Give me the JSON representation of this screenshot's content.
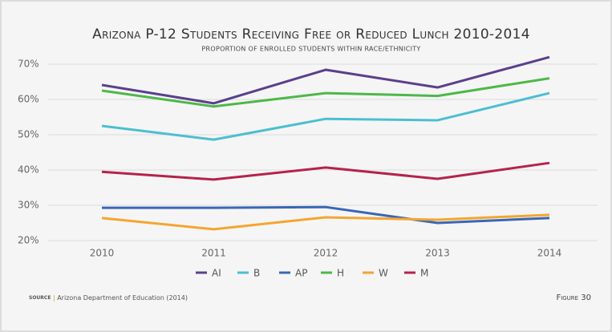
{
  "chart_data": {
    "type": "line",
    "title": "Arizona P-12 Students Receiving Free or Reduced Lunch 2010-2014",
    "subtitle": "PROPORTION OF ENROLLED STUDENTS WITHIN RACE/ETHNICITY",
    "categories": [
      "2010",
      "2011",
      "2012",
      "2013",
      "2014"
    ],
    "series": [
      {
        "name": "AI",
        "color": "#5b3f8c",
        "values": [
          64.1,
          58.9,
          68.4,
          63.4,
          72
        ]
      },
      {
        "name": "B",
        "color": "#4bbfcf",
        "values": [
          52.5,
          48.6,
          54.5,
          54.1,
          61.8
        ]
      },
      {
        "name": "AP",
        "color": "#3a66b5",
        "values": [
          29.3,
          29.3,
          29.5,
          25,
          26.4
        ]
      },
      {
        "name": "H",
        "color": "#4db848",
        "values": [
          62.5,
          58,
          61.8,
          61,
          66
        ]
      },
      {
        "name": "W",
        "color": "#f4a531",
        "values": [
          26.4,
          23.2,
          26.6,
          25.9,
          27.3
        ]
      },
      {
        "name": "M",
        "color": "#b5234a",
        "values": [
          39.5,
          37.3,
          40.7,
          37.5,
          42
        ]
      }
    ],
    "ylim": [
      20,
      72
    ],
    "yticks": [
      {
        "value": 20,
        "label": "20%"
      },
      {
        "value": 30,
        "label": "30%"
      },
      {
        "value": 40,
        "label": "40%"
      },
      {
        "value": 50,
        "label": "50%"
      },
      {
        "value": 60,
        "label": "60%"
      },
      {
        "value": 70,
        "label": "70%"
      }
    ],
    "grid": true,
    "source_label": "source",
    "source": "Arizona Department of Education (2014)",
    "figure_label": "Figure 30"
  }
}
